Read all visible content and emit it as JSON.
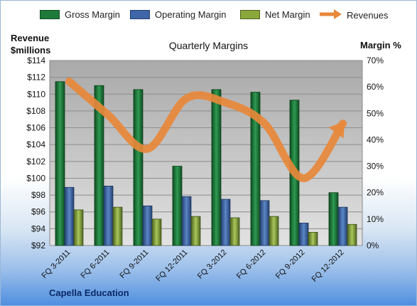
{
  "legend": {
    "gross": "Gross Margin",
    "operating": "Operating Margin",
    "net": "Net Margin",
    "revenues": "Revenues"
  },
  "left_axis_title_line1": "Revenue",
  "left_axis_title_line2": "$millions",
  "right_axis_title": "Margin %",
  "footer": "Capella Education",
  "colors": {
    "gross": "#1e7a3a",
    "operating": "#3f66a8",
    "net": "#8aa83a",
    "revenues": "#e8883a",
    "plot_bg": "#cfcfcf"
  },
  "chart_data": {
    "type": "bar",
    "title": "Quarterly Margins",
    "categories": [
      "FQ 3-2011",
      "FQ 6-2011",
      "FQ 9-2011",
      "FQ 12-2011",
      "FQ 3-2012",
      "FQ 6-2012",
      "FQ 9-2012",
      "FQ 12-2012"
    ],
    "series": [
      {
        "name": "Gross Margin",
        "axis": "right",
        "values": [
          62,
          60.5,
          59,
          30,
          59,
          58,
          55,
          20
        ]
      },
      {
        "name": "Operating Margin",
        "axis": "right",
        "values": [
          22,
          22.5,
          15,
          18.5,
          17.5,
          17,
          8.5,
          14.5
        ]
      },
      {
        "name": "Net Margin",
        "axis": "right",
        "values": [
          13.5,
          14.5,
          10,
          11,
          10.5,
          11,
          5,
          8
        ]
      },
      {
        "name": "Revenues",
        "type": "line",
        "axis": "left",
        "values": [
          111.5,
          107.5,
          103.5,
          109.5,
          109,
          106.5,
          100,
          106.5
        ]
      }
    ],
    "ylabel_left": "Revenue $millions",
    "ylim_left": [
      92,
      114
    ],
    "yticks_left": [
      "$92",
      "$94",
      "$96",
      "$98",
      "$100",
      "$102",
      "$104",
      "$106",
      "$108",
      "$110",
      "$112",
      "$114"
    ],
    "ylabel_right": "Margin %",
    "ylim_right": [
      0,
      70
    ],
    "yticks_right": [
      "0%",
      "10%",
      "20%",
      "30%",
      "40%",
      "50%",
      "60%",
      "70%"
    ],
    "grid": true,
    "legend_position": "top"
  }
}
